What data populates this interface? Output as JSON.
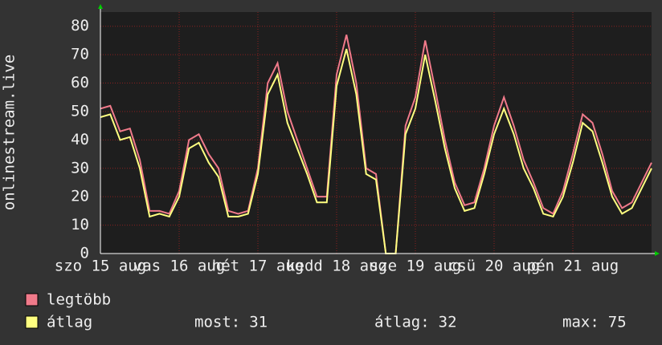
{
  "chart_data": {
    "type": "line",
    "y_label": "onlinestream.live",
    "x": [
      0,
      3,
      6,
      9,
      12,
      15,
      18,
      21,
      24,
      27,
      30,
      33,
      36,
      39,
      42,
      45,
      48,
      51,
      54,
      57,
      60,
      63,
      66,
      69,
      72,
      75,
      78,
      81,
      84,
      87,
      90,
      93,
      96,
      99,
      102,
      105,
      108,
      111,
      114,
      117,
      120,
      123,
      126,
      129,
      132,
      135,
      138,
      141,
      144,
      147,
      150,
      153,
      156,
      159,
      162,
      165,
      168
    ],
    "series": [
      {
        "name": "legtöbb",
        "color": "#f07a8a",
        "values": [
          51,
          52,
          43,
          44,
          33,
          15,
          15,
          14,
          22,
          40,
          42,
          35,
          30,
          15,
          14,
          15,
          30,
          60,
          67,
          50,
          40,
          30,
          20,
          20,
          63,
          77,
          60,
          30,
          28,
          0,
          0,
          45,
          55,
          75,
          58,
          40,
          25,
          17,
          18,
          30,
          45,
          55,
          45,
          33,
          25,
          16,
          14,
          22,
          35,
          49,
          46,
          35,
          22,
          16,
          18,
          25,
          32
        ]
      },
      {
        "name": "átlag",
        "color": "#ffff80",
        "values": [
          48,
          49,
          40,
          41,
          30,
          13,
          14,
          13,
          20,
          37,
          39,
          32,
          27,
          13,
          13,
          14,
          28,
          56,
          63,
          46,
          37,
          28,
          18,
          18,
          59,
          72,
          56,
          28,
          26,
          0,
          0,
          42,
          51,
          70,
          54,
          37,
          23,
          15,
          16,
          28,
          42,
          51,
          42,
          30,
          23,
          14,
          13,
          20,
          32,
          46,
          43,
          32,
          20,
          14,
          16,
          23,
          30
        ]
      }
    ],
    "xlim": [
      0,
      168
    ],
    "xticks": [
      {
        "value": 0,
        "label": "szo 15 aug"
      },
      {
        "value": 24,
        "label": "vas 16 aug"
      },
      {
        "value": 48,
        "label": "hét 17 aug"
      },
      {
        "value": 72,
        "label": "kedd 18 aug"
      },
      {
        "value": 96,
        "label": "sze 19 aug"
      },
      {
        "value": 120,
        "label": "csü 20 aug"
      },
      {
        "value": 144,
        "label": "pén 21 aug"
      }
    ],
    "ylim": [
      0,
      85
    ],
    "yticks": [
      0,
      10,
      20,
      30,
      40,
      50,
      60,
      70,
      80
    ],
    "grid": true,
    "stats": [
      {
        "label": "most:",
        "value": 31
      },
      {
        "label": "átlag:",
        "value": 32
      },
      {
        "label": "max:",
        "value": 75
      }
    ]
  }
}
